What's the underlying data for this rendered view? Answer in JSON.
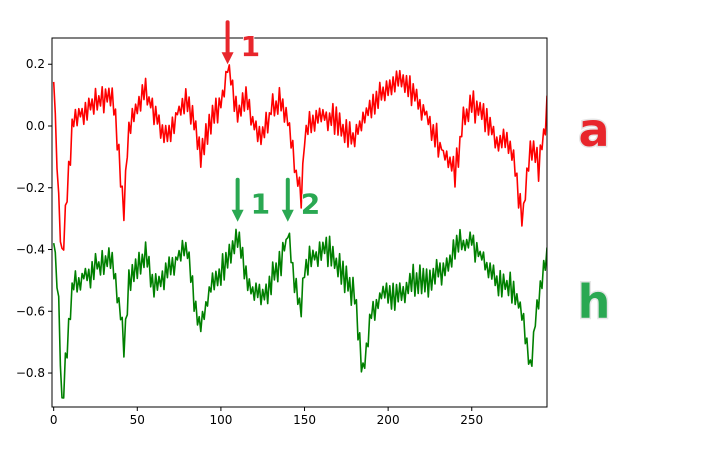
{
  "chart_data": {
    "type": "line",
    "title": "",
    "xlabel": "",
    "ylabel": "",
    "xlim": [
      -1,
      295
    ],
    "ylim": [
      -0.91,
      0.285
    ],
    "grid": false,
    "x_ticks": [
      0,
      50,
      100,
      150,
      200,
      250
    ],
    "x_tick_labels": [
      "0",
      "50",
      "100",
      "150",
      "200",
      "250"
    ],
    "y_ticks": [
      0.2,
      0.0,
      -0.2,
      -0.4,
      -0.6,
      -0.8
    ],
    "y_tick_labels": [
      "0.2",
      "0.0",
      "−0.2",
      "−0.4",
      "−0.6",
      "−0.8"
    ],
    "series": [
      {
        "color": "#ff0000",
        "side_label": "a",
        "side_label_color": "#e8262c",
        "anchors": [
          [
            0,
            0.17
          ],
          [
            3,
            -0.25
          ],
          [
            5,
            -0.43
          ],
          [
            8,
            -0.2
          ],
          [
            12,
            0.02
          ],
          [
            15,
            0.03
          ],
          [
            20,
            0.05
          ],
          [
            25,
            0.08
          ],
          [
            30,
            0.09
          ],
          [
            35,
            0.1
          ],
          [
            40,
            -0.15
          ],
          [
            42,
            -0.28
          ],
          [
            45,
            0.0
          ],
          [
            50,
            0.05
          ],
          [
            55,
            0.12
          ],
          [
            60,
            0.05
          ],
          [
            65,
            0.0
          ],
          [
            70,
            -0.03
          ],
          [
            75,
            0.06
          ],
          [
            80,
            0.08
          ],
          [
            85,
            -0.02
          ],
          [
            88,
            -0.12
          ],
          [
            90,
            -0.05
          ],
          [
            95,
            0.02
          ],
          [
            100,
            0.08
          ],
          [
            104,
            0.19
          ],
          [
            110,
            0.05
          ],
          [
            115,
            0.1
          ],
          [
            120,
            0.0
          ],
          [
            125,
            -0.03
          ],
          [
            130,
            0.05
          ],
          [
            135,
            0.08
          ],
          [
            140,
            0.03
          ],
          [
            145,
            -0.15
          ],
          [
            148,
            -0.25
          ],
          [
            150,
            -0.02
          ],
          [
            155,
            0.02
          ],
          [
            160,
            0.04
          ],
          [
            165,
            0.03
          ],
          [
            170,
            0.0
          ],
          [
            175,
            -0.02
          ],
          [
            180,
            -0.04
          ],
          [
            185,
            0.03
          ],
          [
            190,
            0.06
          ],
          [
            195,
            0.1
          ],
          [
            200,
            0.12
          ],
          [
            205,
            0.16
          ],
          [
            210,
            0.14
          ],
          [
            215,
            0.1
          ],
          [
            220,
            0.06
          ],
          [
            225,
            0.0
          ],
          [
            230,
            -0.05
          ],
          [
            235,
            -0.1
          ],
          [
            240,
            -0.15
          ],
          [
            245,
            0.02
          ],
          [
            250,
            0.08
          ],
          [
            255,
            0.05
          ],
          [
            260,
            0.0
          ],
          [
            265,
            -0.05
          ],
          [
            270,
            -0.03
          ],
          [
            275,
            -0.1
          ],
          [
            280,
            -0.3
          ],
          [
            285,
            -0.08
          ],
          [
            290,
            -0.12
          ],
          [
            295,
            0.05
          ]
        ],
        "noise": 0.07
      },
      {
        "color": "#008000",
        "side_label": "h",
        "side_label_color": "#2aa852",
        "anchors": [
          [
            0,
            -0.35
          ],
          [
            3,
            -0.6
          ],
          [
            5,
            -0.9
          ],
          [
            8,
            -0.7
          ],
          [
            12,
            -0.5
          ],
          [
            15,
            -0.5
          ],
          [
            20,
            -0.48
          ],
          [
            25,
            -0.45
          ],
          [
            30,
            -0.45
          ],
          [
            35,
            -0.44
          ],
          [
            40,
            -0.6
          ],
          [
            42,
            -0.72
          ],
          [
            45,
            -0.5
          ],
          [
            50,
            -0.45
          ],
          [
            55,
            -0.42
          ],
          [
            60,
            -0.5
          ],
          [
            65,
            -0.5
          ],
          [
            70,
            -0.45
          ],
          [
            75,
            -0.42
          ],
          [
            80,
            -0.4
          ],
          [
            85,
            -0.6
          ],
          [
            88,
            -0.65
          ],
          [
            90,
            -0.6
          ],
          [
            95,
            -0.5
          ],
          [
            100,
            -0.48
          ],
          [
            105,
            -0.42
          ],
          [
            110,
            -0.35
          ],
          [
            115,
            -0.5
          ],
          [
            120,
            -0.55
          ],
          [
            125,
            -0.55
          ],
          [
            130,
            -0.5
          ],
          [
            135,
            -0.45
          ],
          [
            140,
            -0.35
          ],
          [
            145,
            -0.55
          ],
          [
            148,
            -0.6
          ],
          [
            150,
            -0.45
          ],
          [
            155,
            -0.42
          ],
          [
            160,
            -0.4
          ],
          [
            165,
            -0.4
          ],
          [
            170,
            -0.45
          ],
          [
            175,
            -0.5
          ],
          [
            180,
            -0.55
          ],
          [
            185,
            -0.8
          ],
          [
            190,
            -0.6
          ],
          [
            195,
            -0.55
          ],
          [
            200,
            -0.55
          ],
          [
            205,
            -0.55
          ],
          [
            210,
            -0.52
          ],
          [
            215,
            -0.5
          ],
          [
            220,
            -0.5
          ],
          [
            225,
            -0.5
          ],
          [
            230,
            -0.48
          ],
          [
            235,
            -0.45
          ],
          [
            240,
            -0.4
          ],
          [
            245,
            -0.38
          ],
          [
            250,
            -0.38
          ],
          [
            255,
            -0.42
          ],
          [
            260,
            -0.45
          ],
          [
            265,
            -0.5
          ],
          [
            270,
            -0.5
          ],
          [
            275,
            -0.55
          ],
          [
            280,
            -0.6
          ],
          [
            285,
            -0.78
          ],
          [
            290,
            -0.55
          ],
          [
            295,
            -0.4
          ]
        ],
        "noise": 0.07
      }
    ],
    "annotations": [
      {
        "label": "1",
        "x": 104,
        "y": 0.2,
        "color": "#e8262c"
      },
      {
        "label": "1",
        "x": 110,
        "y": -0.31,
        "color": "#2aa852"
      },
      {
        "label": "2",
        "x": 140,
        "y": -0.31,
        "color": "#2aa852"
      }
    ]
  }
}
